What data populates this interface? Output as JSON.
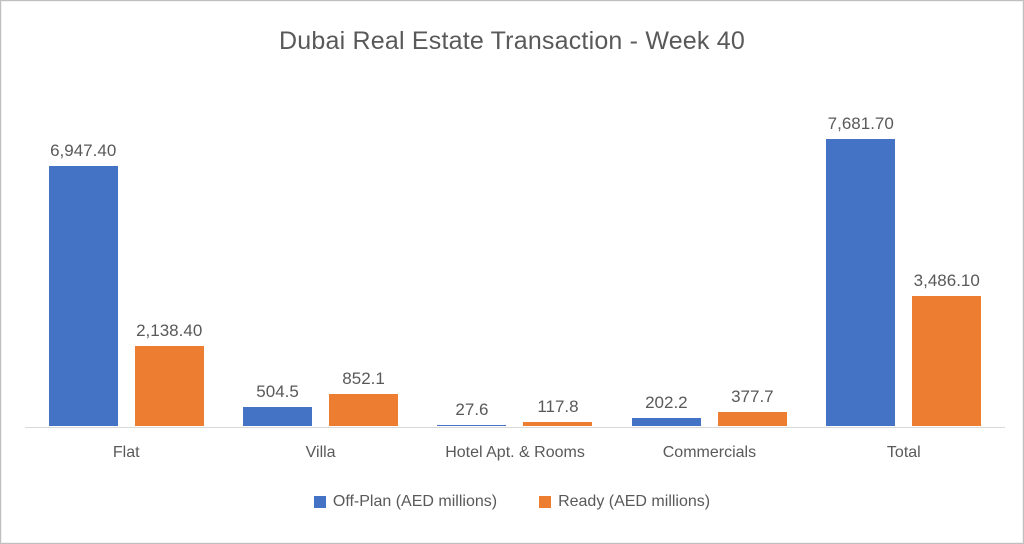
{
  "chart_data": {
    "type": "bar",
    "title": "Dubai Real Estate Transaction - Week 40",
    "categories": [
      "Flat",
      "Villa",
      "Hotel Apt. & Rooms",
      "Commercials",
      "Total"
    ],
    "series": [
      {
        "name": "Off-Plan (AED millions)",
        "color": "#4472C4",
        "values": [
          6947.4,
          504.5,
          27.6,
          202.2,
          7681.7
        ],
        "labels": [
          "6,947.40",
          "504.5",
          "27.6",
          "202.2",
          "7,681.70"
        ]
      },
      {
        "name": "Ready (AED millions)",
        "color": "#ED7D31",
        "values": [
          2138.4,
          852.1,
          117.8,
          377.7,
          3486.1
        ],
        "labels": [
          "2,138.40",
          "852.1",
          "117.8",
          "377.7",
          "3,486.10"
        ]
      }
    ],
    "xlabel": "",
    "ylabel": "",
    "ylim": [
      0,
      7681.7
    ],
    "grid": false,
    "legend_position": "bottom",
    "data_labels": true,
    "axes_shown": "x-baseline-only"
  },
  "colors": {
    "title_text": "#595959",
    "label_text": "#595959",
    "axis_line": "#d9d9d9",
    "background": "#ffffff",
    "border": "#bfbfbf"
  }
}
